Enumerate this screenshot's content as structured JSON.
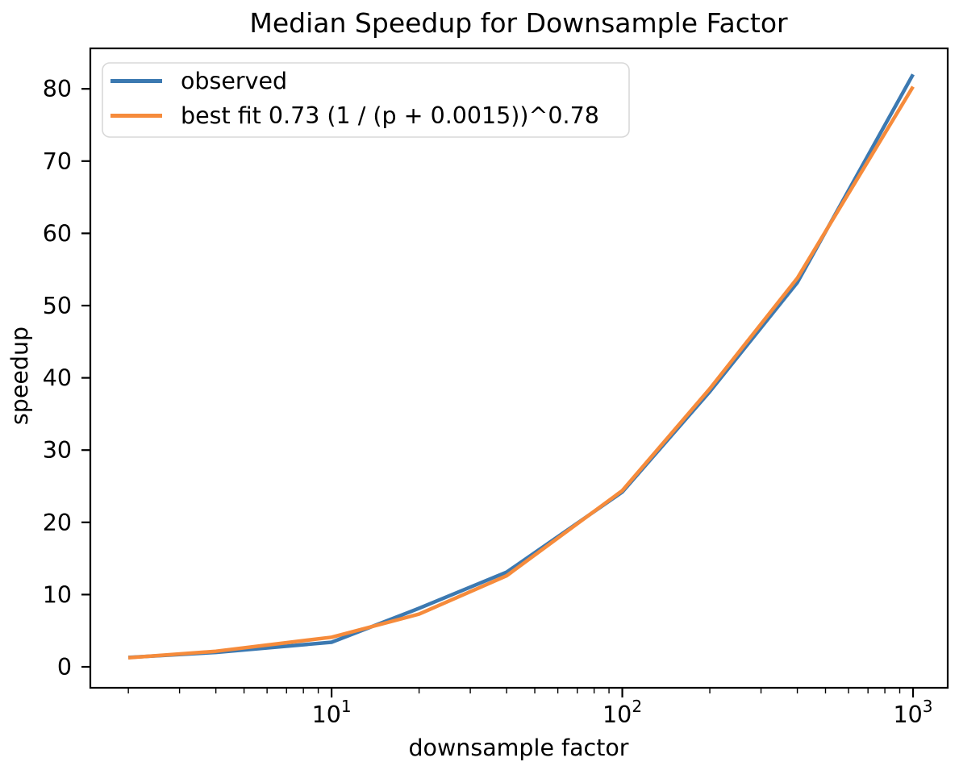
{
  "chart_data": {
    "type": "line",
    "title": "Median Speedup for Downsample Factor",
    "xlabel": "downsample factor",
    "ylabel": "speedup",
    "x_scale": "log",
    "grid": false,
    "legend_position": "upper left",
    "x": [
      2,
      4,
      10,
      20,
      40,
      100,
      200,
      400,
      1000
    ],
    "series": [
      {
        "name": "observed",
        "color": "#3c79b1",
        "values": [
          1.3,
          2.0,
          3.4,
          8.1,
          13.1,
          24.2,
          38.1,
          53.2,
          82.0
        ]
      },
      {
        "name": "best fit 0.73 (1 / (p + 0.0015))^0.78",
        "color": "#f68b3b",
        "values": [
          1.25,
          2.15,
          4.1,
          7.3,
          12.6,
          24.4,
          38.5,
          53.8,
          80.3
        ]
      }
    ],
    "yticks": [
      0,
      10,
      20,
      30,
      40,
      50,
      60,
      70,
      80
    ],
    "xticks": [
      {
        "value": 10,
        "base": "10",
        "sup": "1"
      },
      {
        "value": 100,
        "base": "10",
        "sup": "2"
      },
      {
        "value": 1000,
        "base": "10",
        "sup": "3"
      }
    ],
    "xlim": [
      1.48,
      1316
    ],
    "ylim": [
      -2.9,
      85.6
    ],
    "axis_color": "#000000",
    "background_color": "#ffffff"
  }
}
